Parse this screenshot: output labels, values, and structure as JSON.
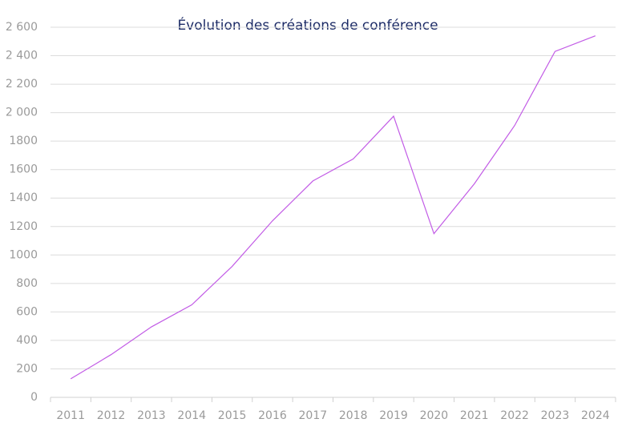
{
  "chart_data": {
    "type": "line",
    "title": "Évolution des créations de conférence",
    "categories": [
      "2011",
      "2012",
      "2013",
      "2014",
      "2015",
      "2016",
      "2017",
      "2018",
      "2019",
      "2020",
      "2021",
      "2022",
      "2023",
      "2024"
    ],
    "values": [
      130,
      300,
      495,
      650,
      920,
      1240,
      1520,
      1675,
      1975,
      1150,
      1500,
      1910,
      2430,
      2540
    ],
    "color": "#c25ce6",
    "ylim": [
      0,
      2600
    ],
    "yticks": [
      0,
      200,
      400,
      600,
      800,
      1000,
      1200,
      1400,
      1600,
      1800,
      {
        "value": 2000,
        "label": "2 000"
      },
      {
        "value": 2200,
        "label": "2 200"
      },
      {
        "value": 2400,
        "label": "2 400"
      },
      {
        "value": 2600,
        "label": "2 600"
      }
    ],
    "grid": true
  }
}
